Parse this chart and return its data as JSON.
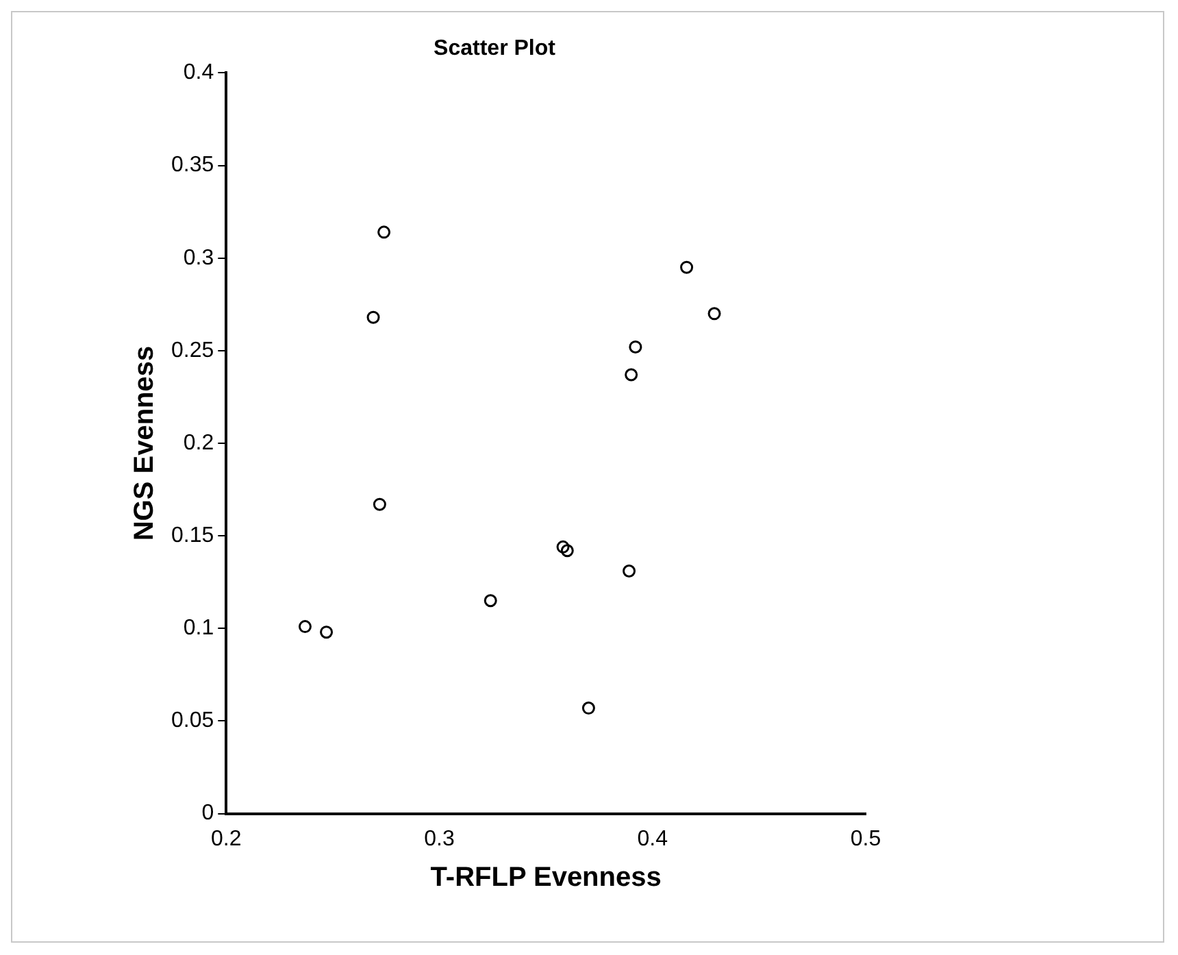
{
  "chart_data": {
    "type": "scatter",
    "title": "Scatter Plot",
    "xlabel": "T-RFLP Evenness",
    "ylabel": "NGS Evenness",
    "x": [
      0.237,
      0.247,
      0.272,
      0.324,
      0.358,
      0.36,
      0.389,
      0.37,
      0.274,
      0.269,
      0.416,
      0.429,
      0.392,
      0.39
    ],
    "series": [
      {
        "color": "#000000",
        "values": [
          0.101,
          0.098,
          0.167,
          0.115,
          0.144,
          0.142,
          0.131,
          0.057,
          0.314,
          0.268,
          0.295,
          0.27,
          0.252,
          0.237
        ]
      }
    ],
    "xlim": [
      0.2,
      0.5
    ],
    "xticks": [
      0.2,
      0.3,
      0.4,
      0.5
    ],
    "ylim": [
      0,
      0.4
    ],
    "yticks": [
      0,
      0.05,
      0.1,
      0.15,
      0.2,
      0.25,
      0.3,
      0.35,
      0.4
    ],
    "grid": false,
    "legend": false,
    "marker": "circle"
  }
}
